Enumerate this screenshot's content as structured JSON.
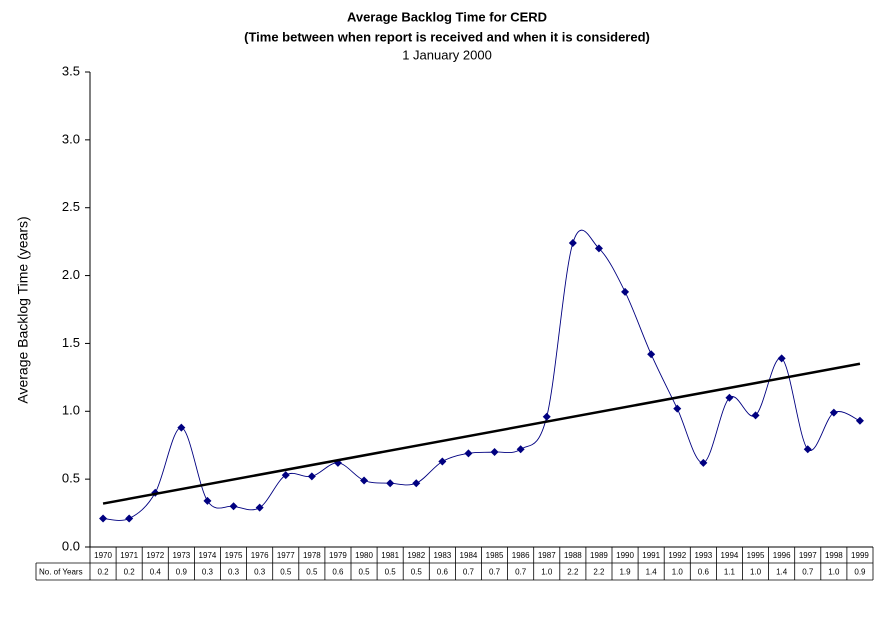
{
  "chart_data": {
    "type": "line",
    "title": "Average Backlog Time for CERD",
    "subtitle": "(Time between when report is received and when it is considered)",
    "date": "1 January 2000",
    "y_label": "Average Backlog Time (years)",
    "table_row_label": "No. of Years",
    "categories": [
      "1970",
      "1971",
      "1972",
      "1973",
      "1974",
      "1975",
      "1976",
      "1977",
      "1978",
      "1979",
      "1980",
      "1981",
      "1982",
      "1983",
      "1984",
      "1985",
      "1986",
      "1987",
      "1988",
      "1989",
      "1990",
      "1991",
      "1992",
      "1993",
      "1994",
      "1995",
      "1996",
      "1997",
      "1998",
      "1999"
    ],
    "series": [
      {
        "color": "#000080",
        "values": [
          0.21,
          0.21,
          0.4,
          0.88,
          0.34,
          0.3,
          0.29,
          0.53,
          0.52,
          0.62,
          0.49,
          0.47,
          0.47,
          0.63,
          0.69,
          0.7,
          0.72,
          0.96,
          2.24,
          2.2,
          1.88,
          1.42,
          1.02,
          0.62,
          1.1,
          0.97,
          1.39,
          0.72,
          0.99,
          0.93
        ],
        "value_labels": [
          "0.2",
          "0.2",
          "0.4",
          "0.9",
          "0.3",
          "0.3",
          "0.3",
          "0.5",
          "0.5",
          "0.6",
          "0.5",
          "0.5",
          "0.5",
          "0.6",
          "0.7",
          "0.7",
          "0.7",
          "1.0",
          "2.2",
          "2.2",
          "1.9",
          "1.4",
          "1.0",
          "0.6",
          "1.1",
          "1.0",
          "1.4",
          "0.7",
          "1.0",
          "0.9"
        ]
      }
    ],
    "trend": {
      "color": "#000000",
      "values": [
        0.32,
        1.35
      ]
    },
    "ylim": [
      0,
      3.5
    ],
    "yticks": [
      {
        "value": 0,
        "label": "0.0"
      },
      {
        "value": 0.5,
        "label": "0.5"
      },
      {
        "value": 1,
        "label": "1.0"
      },
      {
        "value": 1.5,
        "label": "1.5"
      },
      {
        "value": 2,
        "label": "2.0"
      },
      {
        "value": 2.5,
        "label": "2.5"
      },
      {
        "value": 3,
        "label": "3.0"
      },
      {
        "value": 3.5,
        "label": "3.5"
      }
    ]
  }
}
